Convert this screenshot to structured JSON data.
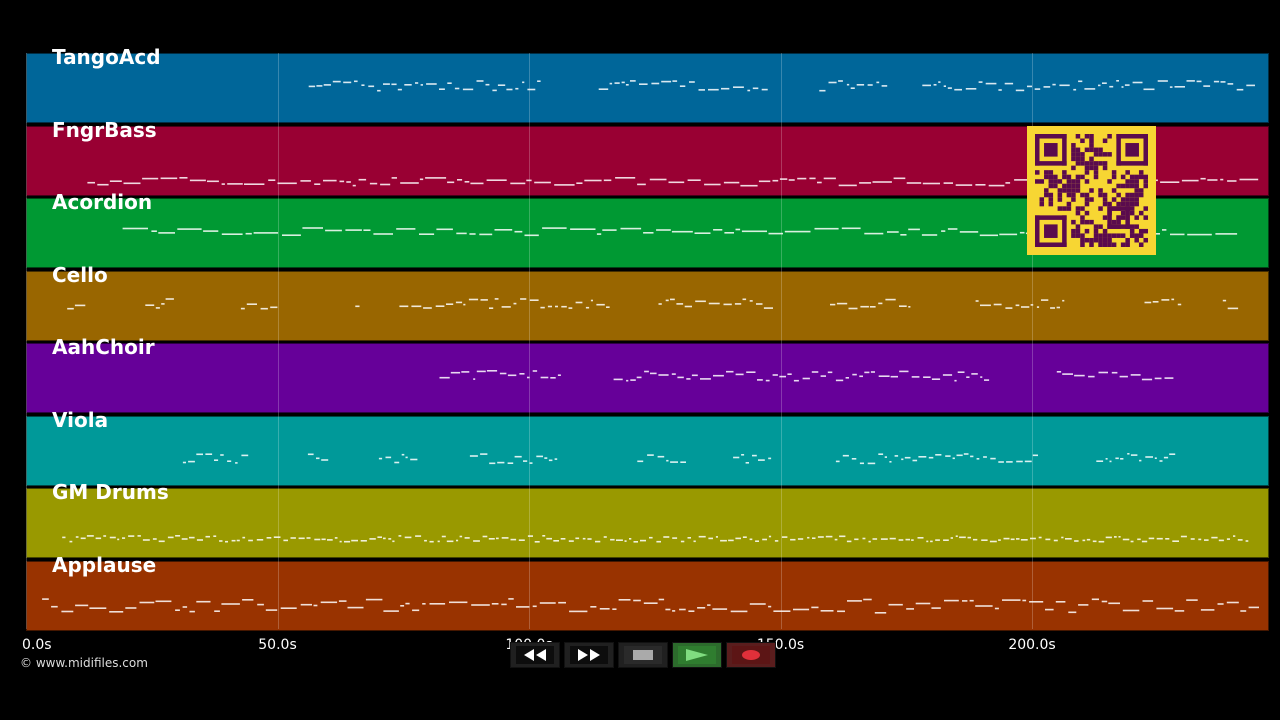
{
  "app": {
    "copyright": "© www.midifiles.com"
  },
  "timeline": {
    "ticks": [
      {
        "label": "0.0s",
        "seconds": 0
      },
      {
        "label": "50.0s",
        "seconds": 50
      },
      {
        "label": "100.0s",
        "seconds": 100
      },
      {
        "label": "150.0s",
        "seconds": 150
      },
      {
        "label": "200.0s",
        "seconds": 200
      }
    ],
    "max_seconds": 247
  },
  "tracks": [
    {
      "name": "TangoAcd",
      "color": "#006699",
      "start": 56,
      "end": 243,
      "style": "melody"
    },
    {
      "name": "FngrBass",
      "color": "#990033",
      "start": 12,
      "end": 243,
      "style": "bass"
    },
    {
      "name": "Acordion",
      "color": "#009933",
      "start": 19,
      "end": 240,
      "style": "chords"
    },
    {
      "name": "Cello",
      "color": "#996600",
      "start": 8,
      "end": 240,
      "style": "melody"
    },
    {
      "name": "AahChoir",
      "color": "#660099",
      "start": 82,
      "end": 228,
      "style": "melody"
    },
    {
      "name": "Viola",
      "color": "#009999",
      "start": 31,
      "end": 228,
      "style": "sparse"
    },
    {
      "name": "GM Drums",
      "color": "#999900",
      "start": 7,
      "end": 243,
      "style": "drums"
    },
    {
      "name": "Applause",
      "color": "#993300",
      "start": 3,
      "end": 243,
      "style": "dense"
    }
  ],
  "transport": {
    "buttons": [
      {
        "id": "rewind",
        "icon": "rewind-icon"
      },
      {
        "id": "fast-forward",
        "icon": "fast-forward-icon"
      },
      {
        "id": "stop",
        "icon": "stop-icon"
      },
      {
        "id": "play",
        "icon": "play-icon"
      },
      {
        "id": "record",
        "icon": "record-icon"
      }
    ]
  },
  "qr_code": {
    "icon": "qr-code-icon",
    "color": "#f7d633",
    "fg": "#5a0b4d"
  }
}
